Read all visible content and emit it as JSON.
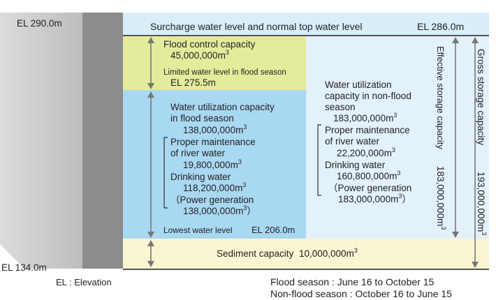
{
  "elevations": {
    "top": "EL 290.0m",
    "bottom": "EL 134.0m",
    "surcharge": "Surcharge water level and normal top water level",
    "surcharge_el": "EL 286.0m",
    "limited": "Limited water level in flood season",
    "limited_el": "EL 275.5m",
    "lowest": "Lowest water level",
    "lowest_el": "EL 206.0m"
  },
  "flood_control": {
    "label": "Flood control capacity",
    "value": "45,000,000m",
    "sup": "3"
  },
  "flood_season": {
    "title1": "Water utilization capacity",
    "title2": "in flood season",
    "total": "138,000,000m",
    "maint1": "Proper maintenance",
    "maint2": "of river water",
    "maint_value": "19,800,000m",
    "drink": "Drinking water",
    "drink_value": "118,200,000m",
    "power": "（Power generation",
    "power_value": "138,000,000m",
    "power_close": "）"
  },
  "nonflood_season": {
    "title1": "Water utilization",
    "title2": "capacity in non-flood",
    "title3": "season",
    "total": "183,000,000m",
    "maint1": "Proper maintenance",
    "maint2": "of river water",
    "maint_value": "22,200,000m",
    "drink": "Drinking water",
    "drink_value": "160,800,000m",
    "power": "（Power generation",
    "power_value": "183,000,000m",
    "power_close": "）"
  },
  "sediment": {
    "label": "Sediment capacity",
    "value": "10,000,000m"
  },
  "effective": {
    "label": "Effective storage capacity",
    "value": "183,000,000m"
  },
  "gross": {
    "label": "Gross storage capacity",
    "value": "193,000,000m"
  },
  "sup": "3",
  "legend": {
    "el": "EL : Elevation",
    "flood": "Flood season : June 16 to October 15",
    "nonflood": "Non-flood season : October 16 to June 15"
  },
  "colors": {
    "flood_control": "#e4ec9c",
    "flood_utilization": "#a9d8f2",
    "nonflood": "#e3f1fb",
    "sediment": "#faf6d2",
    "dam": "#8c8c8c"
  }
}
